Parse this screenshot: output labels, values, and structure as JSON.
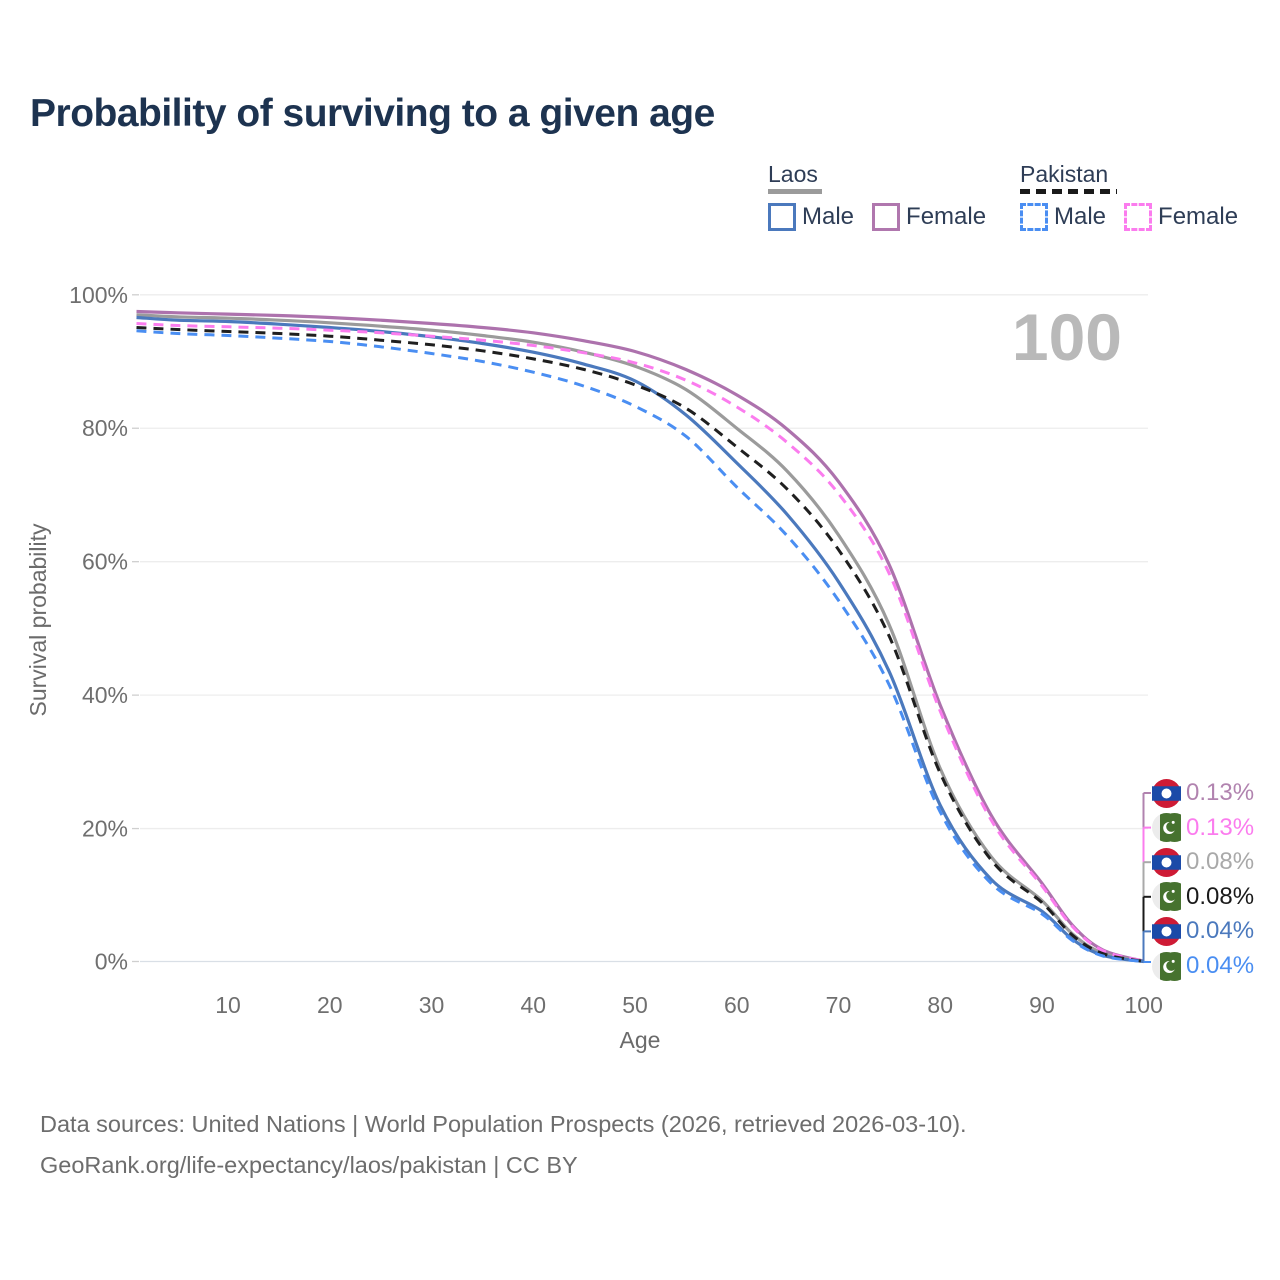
{
  "title": "Probability of surviving to a given age",
  "watermark_age_label": "100",
  "legend": {
    "groups": [
      {
        "label": "Laos",
        "rule_color": "#9b9b9b",
        "rule_style": "solid",
        "items": [
          {
            "label": "Male",
            "color": "#4b79bd",
            "style": "solid"
          },
          {
            "label": "Female",
            "color": "#b077ae",
            "style": "solid"
          }
        ]
      },
      {
        "label": "Pakistan",
        "rule_color": "#1a1a1a",
        "rule_style": "dashed",
        "items": [
          {
            "label": "Male",
            "color": "#4a8ef2",
            "style": "dashed"
          },
          {
            "label": "Female",
            "color": "#fb7cee",
            "style": "dashed"
          }
        ]
      }
    ]
  },
  "chart_data": {
    "type": "line",
    "title": "Probability of surviving to a given age",
    "xlabel": "Age",
    "ylabel": "Survival probability",
    "x_ticks": [
      10,
      20,
      30,
      40,
      50,
      60,
      70,
      80,
      90,
      100
    ],
    "y_ticks_pct": [
      0,
      20,
      40,
      60,
      80,
      100
    ],
    "x_range": [
      1,
      100
    ],
    "y_range_pct": [
      0,
      100
    ],
    "grid": "horizontal",
    "legend_position": "top-right",
    "hover_age": "100",
    "ages": [
      1,
      5,
      10,
      15,
      20,
      25,
      30,
      35,
      40,
      45,
      50,
      55,
      60,
      65,
      70,
      75,
      80,
      85,
      90,
      93,
      96,
      100
    ],
    "series": [
      {
        "name": "Laos Female",
        "country": "Laos",
        "sex": "Female",
        "color": "#ad72ad",
        "dash": "solid",
        "values": [
          97.5,
          97.3,
          97.1,
          96.9,
          96.6,
          96.2,
          95.7,
          95.1,
          94.3,
          93.1,
          91.5,
          88.8,
          85.0,
          79.8,
          72.0,
          59.5,
          38.5,
          22.0,
          11.8,
          5.5,
          1.8,
          0.13
        ]
      },
      {
        "name": "Laos",
        "country": "Laos",
        "sex": "Both",
        "color": "#9b9b9b",
        "dash": "solid",
        "values": [
          97.0,
          96.7,
          96.5,
          96.2,
          95.8,
          95.3,
          94.7,
          93.9,
          92.9,
          91.4,
          89.3,
          85.8,
          80.0,
          73.5,
          64.0,
          50.5,
          29.0,
          15.8,
          9.2,
          4.2,
          1.3,
          0.08
        ]
      },
      {
        "name": "Laos Male",
        "country": "Laos",
        "sex": "Male",
        "color": "#4b79bd",
        "dash": "solid",
        "values": [
          96.6,
          96.2,
          96.0,
          95.6,
          95.1,
          94.5,
          93.7,
          92.7,
          91.4,
          89.6,
          87.1,
          82.0,
          74.8,
          67.0,
          57.0,
          43.5,
          23.5,
          12.4,
          7.6,
          3.4,
          1.0,
          0.04
        ]
      },
      {
        "name": "Pakistan Female",
        "country": "Pakistan",
        "sex": "Female",
        "color": "#fb7cee",
        "dash": "dashed",
        "values": [
          95.7,
          95.4,
          95.2,
          95.0,
          94.7,
          94.3,
          93.8,
          93.2,
          92.4,
          91.3,
          89.8,
          87.2,
          83.2,
          77.8,
          70.2,
          58.2,
          37.6,
          21.3,
          11.4,
          5.3,
          1.7,
          0.13
        ]
      },
      {
        "name": "Pakistan",
        "country": "Pakistan",
        "sex": "Both",
        "color": "#1f1f1f",
        "dash": "dashed",
        "values": [
          95.1,
          94.8,
          94.5,
          94.2,
          93.8,
          93.2,
          92.5,
          91.6,
          90.4,
          88.8,
          86.5,
          83.0,
          77.2,
          70.8,
          61.8,
          48.8,
          28.3,
          15.3,
          8.9,
          4.0,
          1.25,
          0.08
        ]
      },
      {
        "name": "Pakistan Male",
        "country": "Pakistan",
        "sex": "Male",
        "color": "#4a8ef2",
        "dash": "dashed",
        "values": [
          94.6,
          94.2,
          93.9,
          93.5,
          93.0,
          92.2,
          91.2,
          90.0,
          88.4,
          86.3,
          83.3,
          78.8,
          71.2,
          63.8,
          54.2,
          41.5,
          22.5,
          11.8,
          7.2,
          3.2,
          0.9,
          0.04
        ]
      }
    ],
    "end_labels": [
      {
        "flag": "laos",
        "series": "Laos Female",
        "value": "0.13%",
        "color": "#b183af"
      },
      {
        "flag": "pakistan",
        "series": "Pakistan Female",
        "value": "0.13%",
        "color": "#fb7cee"
      },
      {
        "flag": "laos",
        "series": "Laos",
        "value": "0.08%",
        "color": "#a9a9a9"
      },
      {
        "flag": "pakistan",
        "series": "Pakistan",
        "value": "0.08%",
        "color": "#1a1a1a"
      },
      {
        "flag": "laos",
        "series": "Laos Male",
        "value": "0.04%",
        "color": "#4b79bd"
      },
      {
        "flag": "pakistan",
        "series": "Pakistan Male",
        "value": "0.04%",
        "color": "#4a8ef2"
      }
    ],
    "flag_colors": {
      "laos_red": "#ce1b35",
      "laos_blue": "#1b4aa8",
      "pakistan_green": "#46722f",
      "pakistan_white": "#ececec"
    }
  },
  "footer": {
    "line1": "Data sources: United Nations | World Population Prospects (2026, retrieved 2026-03-10).",
    "line2": "GeoRank.org/life-expectancy/laos/pakistan | CC BY"
  }
}
